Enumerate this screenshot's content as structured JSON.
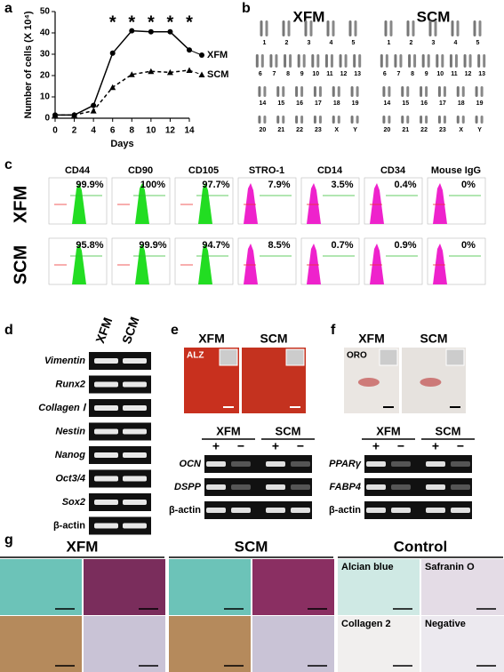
{
  "panel_labels": [
    "a",
    "b",
    "c",
    "d",
    "e",
    "f",
    "g"
  ],
  "chart_data": {
    "type": "line",
    "x": [
      0,
      2,
      4,
      6,
      8,
      10,
      12,
      14
    ],
    "series": [
      {
        "name": "XFM",
        "color": "#000000",
        "marker": "circle",
        "dashed": false,
        "values": [
          1.5,
          1.5,
          6,
          30.5,
          41,
          40.5,
          40.5,
          32
        ]
      },
      {
        "name": "SCM",
        "color": "#000000",
        "marker": "triangle",
        "dashed": true,
        "values": [
          1.5,
          1.5,
          3.5,
          14.5,
          20.5,
          22,
          21.5,
          22.5
        ]
      }
    ],
    "xlabel": "Days",
    "ylabel": "Number of cells (X 10⁴)",
    "xlim": [
      0,
      14
    ],
    "xticks": [
      0,
      2,
      4,
      6,
      8,
      10,
      12,
      14
    ],
    "ylim": [
      0,
      50
    ],
    "yticks": [
      0,
      10,
      20,
      30,
      40,
      50
    ],
    "annotations": [
      {
        "x": 6,
        "text": "*"
      },
      {
        "x": 8,
        "text": "*"
      },
      {
        "x": 10,
        "text": "*"
      },
      {
        "x": 12,
        "text": "*"
      },
      {
        "x": 14,
        "text": "*"
      }
    ]
  },
  "karyotype": {
    "titles": [
      "XFM",
      "SCM"
    ],
    "rows": [
      [
        "1",
        "2",
        "3",
        "4",
        "5"
      ],
      [
        "6",
        "7",
        "8",
        "9",
        "10",
        "11",
        "12",
        "13"
      ],
      [
        "14",
        "15",
        "16",
        "17",
        "18",
        "19"
      ],
      [
        "20",
        "21",
        "22",
        "23",
        "X",
        "Y"
      ]
    ]
  },
  "flow": {
    "markers": [
      "CD44",
      "CD90",
      "CD105",
      "STRO-1",
      "CD14",
      "CD34",
      "Mouse IgG"
    ],
    "groups": [
      {
        "name": "XFM",
        "percentages": [
          "99.9%",
          "100%",
          "97.7%",
          "7.9%",
          "3.5%",
          "0.4%",
          "0%"
        ]
      },
      {
        "name": "SCM",
        "percentages": [
          "95.8%",
          "99.9%",
          "94.7%",
          "8.5%",
          "0.7%",
          "0.9%",
          "0%"
        ]
      }
    ]
  },
  "rt_pcr": {
    "columns": [
      "XFM",
      "SCM"
    ],
    "genes": [
      "Vimentin",
      "Runx2",
      "Collagen Ⅰ",
      "Nestin",
      "Nanog",
      "Oct3/4",
      "Sox2",
      "β-actin"
    ]
  },
  "alizarin": {
    "titles": [
      "XFM",
      "SCM"
    ],
    "stain": "ALZ",
    "columns": [
      "XFM",
      "SCM"
    ],
    "signs": [
      "+",
      "−",
      "+",
      "−"
    ],
    "genes": [
      "OCN",
      "DSPP",
      "β-actin"
    ]
  },
  "oil_red": {
    "titles": [
      "XFM",
      "SCM"
    ],
    "stain": "ORO",
    "columns": [
      "XFM",
      "SCM"
    ],
    "signs": [
      "+",
      "−",
      "+",
      "−"
    ],
    "genes": [
      "PPARγ",
      "FABP4",
      "β-actin"
    ]
  },
  "histology": {
    "groups": [
      "XFM",
      "SCM",
      "Control"
    ],
    "control_labels": [
      "Alcian blue",
      "Safranin O",
      "Collagen 2",
      "Negative"
    ]
  }
}
